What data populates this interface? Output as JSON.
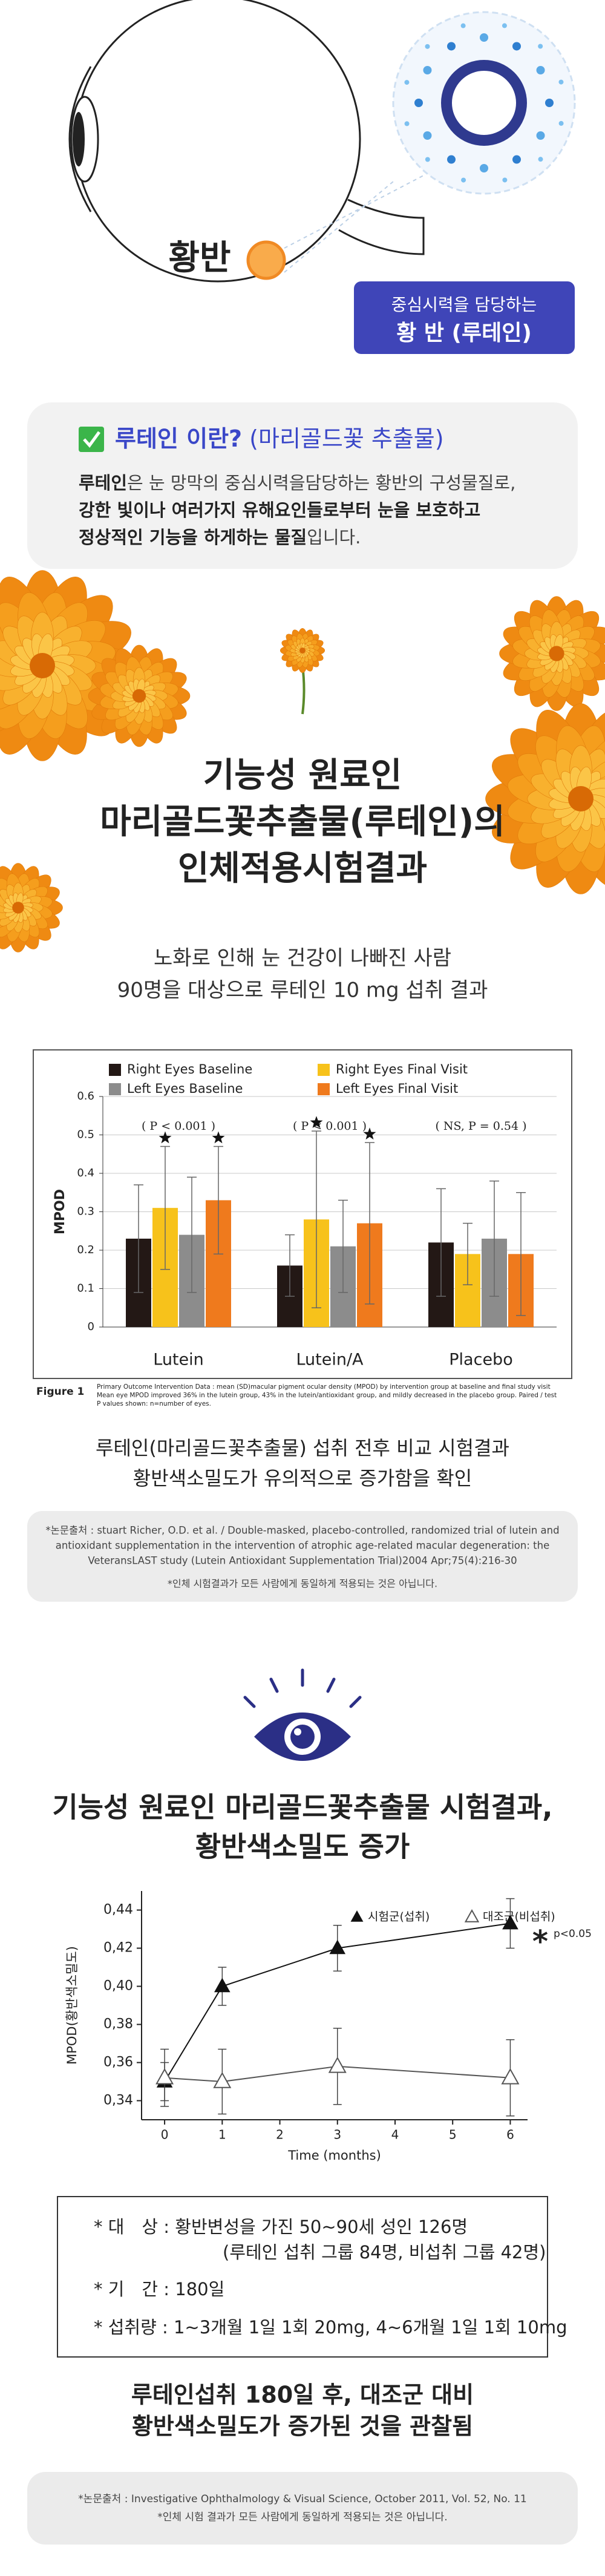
{
  "hero": {
    "macula_label": "황반",
    "box_line1": "중심시력을 담당하는",
    "box_line2": "황 반 (루테인)"
  },
  "intro": {
    "title_bold": "루테인 이란?",
    "title_rest": "(마리골드꽃 추출물)",
    "body": {
      "line1_bold": "루테인",
      "line1_rest": "은 눈 망막의 중심시력을담당하는 황반의 구성물질로,",
      "line2_bold": "강한 빛이나 여러가지 유해요인들로부터 눈을 보호하고",
      "line3_bold": "정상적인 기능을 하게하는 물질",
      "line3_rest": "입니다."
    }
  },
  "section1": {
    "title": [
      "기능성 원료인",
      "마리골드꽃추출물(루테인)의",
      "인체적용시험결과"
    ],
    "subtitle": [
      "노화로 인해 눈 건강이 나빠진 사람",
      "90명을 대상으로 루테인 10 mg 섭취 결과"
    ],
    "figure_label": "Figure 1",
    "figure_caption": [
      "Primary Outcome Intervention Data : mean (SD)macular pigment ocular density (MPOD) by intervention group at baseline and final study visit",
      "Mean eye MPOD improved 36% in the lutein group, 43% in the lutein/antioxidant group, and mildly decreased in the placebo group. Paired / test",
      "P values shown: n=number of eyes."
    ],
    "conclusion": [
      "루테인(마리골드꽃추출물) 섭취 전후 비교 시험결과",
      "황반색소밀도가 유의적으로 증가함을 확인"
    ],
    "reference": [
      "*논문출처 : stuart Richer, O.D. et al. / Double-masked, placebo-controlled, randomized trial of lutein and",
      "antioxidant supplementation in the intervention of atrophic age-related macular degeneration: the",
      "VeteransLAST study (Lutein Antioxidant Supplementation Trial)2004 Apr;75(4):216-30"
    ],
    "reference_note": "*인체 시험결과가 모든 사람에게 동일하게 적용되는 것은 아닙니다."
  },
  "section2": {
    "title": [
      "기능성 원료인 마리골드꽃추출물 시험결과,",
      "황반색소밀도 증가"
    ],
    "info": [
      "* 대　상 : 황반변성을 가진 50~90세 성인 126명",
      "(루테인 섭취 그룹 84명, 비섭취 그룹 42명)",
      "* 기　간 : 180일",
      "* 섭취량 : 1~3개월 1일 1회 20mg, 4~6개월 1일 1회 10mg"
    ],
    "conclusion": [
      "루테인섭취 180일 후, 대조군 대비",
      "황반색소밀도가 증가된 것을 관찰됨"
    ],
    "reference": [
      "*논문출처 : Investigative Ophthalmology & Visual Science, October 2011, Vol. 52, No. 11",
      "*인체 시험 결과가 모든 사람에게 동일하게 적용되는 것은 아닙니다."
    ]
  },
  "chart_data": [
    {
      "type": "bar",
      "ylabel": "MPOD",
      "categories": [
        "Lutein",
        "Lutein/A",
        "Placebo"
      ],
      "category_annotations": [
        "( P < 0.001 )",
        "( P < 0.001 )",
        "( NS, P = 0.54 )"
      ],
      "series": [
        {
          "name": "Right Eyes Baseline",
          "color": "#231815",
          "values": [
            0.23,
            0.16,
            0.22
          ],
          "errors": [
            0.14,
            0.08,
            0.14
          ]
        },
        {
          "name": "Right Eyes Final Visit",
          "color": "#f7c21b",
          "values": [
            0.31,
            0.28,
            0.19
          ],
          "errors": [
            0.16,
            0.23,
            0.08
          ],
          "stars": [
            true,
            true,
            false
          ]
        },
        {
          "name": "Left Eyes Baseline",
          "color": "#8c8c8c",
          "values": [
            0.24,
            0.21,
            0.23
          ],
          "errors": [
            0.15,
            0.12,
            0.15
          ]
        },
        {
          "name": "Left Eyes Final Visit",
          "color": "#ef7a1d",
          "values": [
            0.33,
            0.27,
            0.19
          ],
          "errors": [
            0.14,
            0.21,
            0.16
          ],
          "stars": [
            true,
            true,
            false
          ]
        }
      ],
      "ylim": [
        0,
        0.6
      ],
      "yticks": [
        0,
        0.1,
        0.2,
        0.3,
        0.4,
        0.5,
        0.6
      ],
      "grid": true
    },
    {
      "type": "line",
      "xlabel": "Time (months)",
      "ylabel": "MPOD(황반색소밀도)",
      "x": [
        0,
        1,
        3,
        6
      ],
      "series": [
        {
          "name": "시험군(섭취)",
          "color": "#111111",
          "marker": "triangle-filled",
          "values": [
            0.35,
            0.4,
            0.42,
            0.433
          ],
          "errors": [
            0.01,
            0.01,
            0.012,
            0.013
          ]
        },
        {
          "name": "대조군(비섭취)",
          "color": "#555555",
          "marker": "triangle-open",
          "values": [
            0.352,
            0.35,
            0.358,
            0.352
          ],
          "errors": [
            0.015,
            0.017,
            0.02,
            0.02
          ]
        }
      ],
      "xlim": [
        -0.4,
        6.3
      ],
      "xticks": [
        0,
        1,
        2,
        3,
        4,
        5,
        6
      ],
      "ylim": [
        0.33,
        0.45
      ],
      "yticks": [
        {
          "value": 0.34,
          "label": "0,34"
        },
        {
          "value": 0.36,
          "label": "0,36"
        },
        {
          "value": 0.38,
          "label": "0,38"
        },
        {
          "value": 0.4,
          "label": "0,40"
        },
        {
          "value": 0.42,
          "label": "0,42"
        },
        {
          "value": 0.44,
          "label": "0,44"
        }
      ],
      "annotation": {
        "marker": "*",
        "text": "p<0.05"
      }
    }
  ]
}
